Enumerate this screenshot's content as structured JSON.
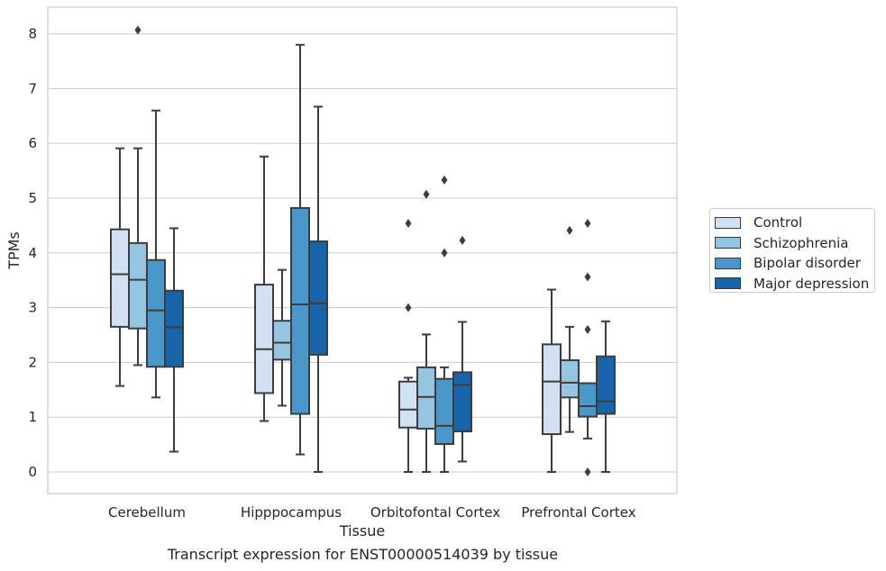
{
  "chart_data": {
    "type": "box",
    "caption": "Transcript expression for ENST00000514039 by tissue",
    "xlabel": "Tissue",
    "ylabel": "TPMs",
    "ylim": [
      -0.4,
      8.5
    ],
    "yticks": [
      0,
      1,
      2,
      3,
      4,
      5,
      6,
      7,
      8
    ],
    "grid": true,
    "legend_position": "right",
    "categories": [
      "Cerebellum",
      "Hipppocampus",
      "Orbitofontal Cortex",
      "Prefrontal Cortex"
    ],
    "series": [
      {
        "name": "Control",
        "color": "#d0e1f2",
        "boxes": [
          {
            "whisker_low": 1.57,
            "q1": 2.65,
            "median": 3.61,
            "q3": 4.43,
            "whisker_high": 5.91,
            "outliers": []
          },
          {
            "whisker_low": 0.93,
            "q1": 1.44,
            "median": 2.24,
            "q3": 3.42,
            "whisker_high": 5.76,
            "outliers": []
          },
          {
            "whisker_low": 0.0,
            "q1": 0.81,
            "median": 1.14,
            "q3": 1.65,
            "whisker_high": 1.72,
            "outliers": [
              3.0,
              4.54
            ]
          },
          {
            "whisker_low": 0.0,
            "q1": 0.69,
            "median": 1.65,
            "q3": 2.33,
            "whisker_high": 3.33,
            "outliers": []
          }
        ]
      },
      {
        "name": "Schizophrenia",
        "color": "#94c4df",
        "boxes": [
          {
            "whisker_low": 1.95,
            "q1": 2.62,
            "median": 3.51,
            "q3": 4.18,
            "whisker_high": 5.91,
            "outliers": [
              8.07
            ]
          },
          {
            "whisker_low": 1.21,
            "q1": 2.05,
            "median": 2.36,
            "q3": 2.76,
            "whisker_high": 3.69,
            "outliers": []
          },
          {
            "whisker_low": 0.0,
            "q1": 0.79,
            "median": 1.37,
            "q3": 1.91,
            "whisker_high": 2.51,
            "outliers": [
              5.07
            ]
          },
          {
            "whisker_low": 0.73,
            "q1": 1.36,
            "median": 1.63,
            "q3": 2.04,
            "whisker_high": 2.65,
            "outliers": [
              4.41
            ]
          }
        ]
      },
      {
        "name": "Bipolar disorder",
        "color": "#4a98c9",
        "boxes": [
          {
            "whisker_low": 1.36,
            "q1": 1.92,
            "median": 2.95,
            "q3": 3.87,
            "whisker_high": 6.6,
            "outliers": []
          },
          {
            "whisker_low": 0.32,
            "q1": 1.06,
            "median": 3.06,
            "q3": 4.82,
            "whisker_high": 7.8,
            "outliers": []
          },
          {
            "whisker_low": 0.0,
            "q1": 0.51,
            "median": 0.84,
            "q3": 1.7,
            "whisker_high": 1.91,
            "outliers": [
              4.0,
              5.33
            ]
          },
          {
            "whisker_low": 0.61,
            "q1": 1.01,
            "median": 1.2,
            "q3": 1.62,
            "whisker_high": 1.62,
            "outliers": [
              0.0,
              2.6,
              3.56,
              4.54
            ]
          }
        ]
      },
      {
        "name": "Major depression",
        "color": "#1764ab",
        "boxes": [
          {
            "whisker_low": 0.37,
            "q1": 1.92,
            "median": 2.64,
            "q3": 3.31,
            "whisker_high": 4.45,
            "outliers": []
          },
          {
            "whisker_low": 0.0,
            "q1": 2.14,
            "median": 3.08,
            "q3": 4.21,
            "whisker_high": 6.67,
            "outliers": []
          },
          {
            "whisker_low": 0.19,
            "q1": 0.74,
            "median": 1.59,
            "q3": 1.82,
            "whisker_high": 2.74,
            "outliers": [
              4.23
            ]
          },
          {
            "whisker_low": 0.0,
            "q1": 1.06,
            "median": 1.29,
            "q3": 2.11,
            "whisker_high": 2.75,
            "outliers": []
          }
        ]
      }
    ]
  }
}
